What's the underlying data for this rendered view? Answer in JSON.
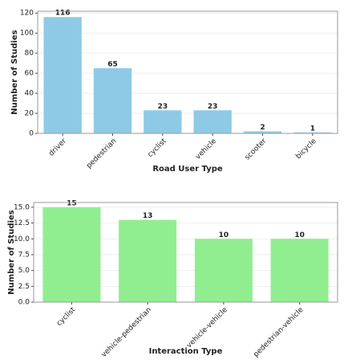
{
  "chart_data": [
    {
      "type": "bar",
      "x_label": "Road User Type",
      "y_label": "Number of Studies",
      "categories": [
        "driver",
        "pedestrian",
        "cyclist",
        "vehicle",
        "scooter",
        "bicycle"
      ],
      "values": [
        116,
        65,
        23,
        23,
        2,
        1
      ],
      "color": "#8ecae6",
      "ylim": [
        0,
        121.8
      ],
      "yticks": [
        0,
        20,
        40,
        60,
        80,
        100,
        120
      ],
      "grid": true
    },
    {
      "type": "bar",
      "x_label": "Interaction Type",
      "y_label": "Number of Studies",
      "categories": [
        "cyclist",
        "vehicle-pedestrian",
        "vehicle-vehicle",
        "pedestrian-vehicle"
      ],
      "values": [
        15,
        13,
        10,
        10
      ],
      "color": "#90ee90",
      "ylim": [
        0,
        15.75
      ],
      "yticks": [
        {
          "value": 0,
          "label": "0.0"
        },
        {
          "value": 2.5,
          "label": "2.5"
        },
        {
          "value": 5,
          "label": "5.0"
        },
        {
          "value": 7.5,
          "label": "7.5"
        },
        {
          "value": 10,
          "label": "10.0"
        },
        {
          "value": 12.5,
          "label": "12.5"
        },
        {
          "value": 15,
          "label": "15.0"
        }
      ],
      "grid": true
    }
  ]
}
